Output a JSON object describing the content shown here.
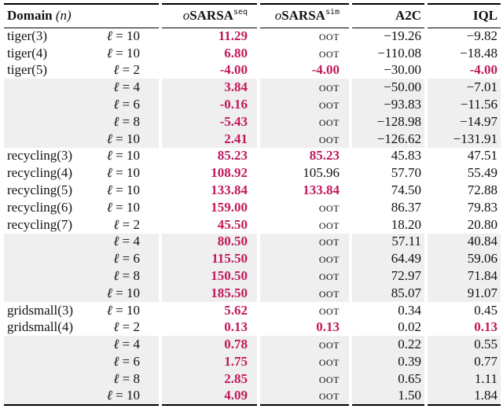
{
  "header": {
    "domain_label": "Domain",
    "n_symbol": "(n)",
    "seq_prefix": "o",
    "seq_main": "SARSA",
    "seq_sup": "seq",
    "sim_prefix": "o",
    "sim_main": "SARSA",
    "sim_sup": "sim",
    "a2c": "A2C",
    "iql": "IQL"
  },
  "highlight_color": "#c2185b",
  "rows": [
    {
      "domain": "tiger(3)",
      "ell": "10",
      "seq": "11.29",
      "sim": "OOT",
      "a2c": "−19.26",
      "iql": "−9.82",
      "best": [
        "seq"
      ]
    },
    {
      "domain": "tiger(4)",
      "ell": "10",
      "seq": "6.80",
      "sim": "OOT",
      "a2c": "−110.08",
      "iql": "−18.48",
      "best": [
        "seq"
      ]
    },
    {
      "domain": "tiger(5)",
      "ell": "2",
      "seq": "-4.00",
      "sim": "-4.00",
      "a2c": "−30.00",
      "iql": "-4.00",
      "best": [
        "seq",
        "sim",
        "iql"
      ]
    },
    {
      "domain": "",
      "ell": "4",
      "seq": "3.84",
      "sim": "OOT",
      "a2c": "−50.00",
      "iql": "−7.01",
      "best": [
        "seq"
      ]
    },
    {
      "domain": "",
      "ell": "6",
      "seq": "-0.16",
      "sim": "OOT",
      "a2c": "−93.83",
      "iql": "−11.56",
      "best": [
        "seq"
      ]
    },
    {
      "domain": "",
      "ell": "8",
      "seq": "-5.43",
      "sim": "OOT",
      "a2c": "−128.98",
      "iql": "−14.97",
      "best": [
        "seq"
      ]
    },
    {
      "domain": "",
      "ell": "10",
      "seq": "2.41",
      "sim": "OOT",
      "a2c": "−126.62",
      "iql": "−131.91",
      "best": [
        "seq"
      ]
    },
    {
      "domain": "recycling(3)",
      "ell": "10",
      "seq": "85.23",
      "sim": "85.23",
      "a2c": "45.83",
      "iql": "47.51",
      "best": [
        "seq",
        "sim"
      ]
    },
    {
      "domain": "recycling(4)",
      "ell": "10",
      "seq": "108.92",
      "sim": "105.96",
      "a2c": "57.70",
      "iql": "55.49",
      "best": [
        "seq"
      ]
    },
    {
      "domain": "recycling(5)",
      "ell": "10",
      "seq": "133.84",
      "sim": "133.84",
      "a2c": "74.50",
      "iql": "72.88",
      "best": [
        "seq",
        "sim"
      ]
    },
    {
      "domain": "recycling(6)",
      "ell": "10",
      "seq": "159.00",
      "sim": "OOT",
      "a2c": "86.37",
      "iql": "79.83",
      "best": [
        "seq"
      ]
    },
    {
      "domain": "recycling(7)",
      "ell": "2",
      "seq": "45.50",
      "sim": "OOT",
      "a2c": "18.20",
      "iql": "20.80",
      "best": [
        "seq"
      ]
    },
    {
      "domain": "",
      "ell": "4",
      "seq": "80.50",
      "sim": "OOT",
      "a2c": "57.11",
      "iql": "40.84",
      "best": [
        "seq"
      ]
    },
    {
      "domain": "",
      "ell": "6",
      "seq": "115.50",
      "sim": "OOT",
      "a2c": "64.49",
      "iql": "59.06",
      "best": [
        "seq"
      ]
    },
    {
      "domain": "",
      "ell": "8",
      "seq": "150.50",
      "sim": "OOT",
      "a2c": "72.97",
      "iql": "71.84",
      "best": [
        "seq"
      ]
    },
    {
      "domain": "",
      "ell": "10",
      "seq": "185.50",
      "sim": "OOT",
      "a2c": "85.07",
      "iql": "91.07",
      "best": [
        "seq"
      ]
    },
    {
      "domain": "gridsmall(3)",
      "ell": "10",
      "seq": "5.62",
      "sim": "OOT",
      "a2c": "0.34",
      "iql": "0.45",
      "best": [
        "seq"
      ]
    },
    {
      "domain": "gridsmall(4)",
      "ell": "2",
      "seq": "0.13",
      "sim": "0.13",
      "a2c": "0.02",
      "iql": "0.13",
      "best": [
        "seq",
        "sim",
        "iql"
      ]
    },
    {
      "domain": "",
      "ell": "4",
      "seq": "0.78",
      "sim": "OOT",
      "a2c": "0.22",
      "iql": "0.55",
      "best": [
        "seq"
      ]
    },
    {
      "domain": "",
      "ell": "6",
      "seq": "1.75",
      "sim": "OOT",
      "a2c": "0.39",
      "iql": "0.77",
      "best": [
        "seq"
      ]
    },
    {
      "domain": "",
      "ell": "8",
      "seq": "2.85",
      "sim": "OOT",
      "a2c": "0.65",
      "iql": "1.11",
      "best": [
        "seq"
      ]
    },
    {
      "domain": "",
      "ell": "10",
      "seq": "4.09",
      "sim": "OOT",
      "a2c": "1.50",
      "iql": "1.84",
      "best": [
        "seq"
      ]
    }
  ]
}
